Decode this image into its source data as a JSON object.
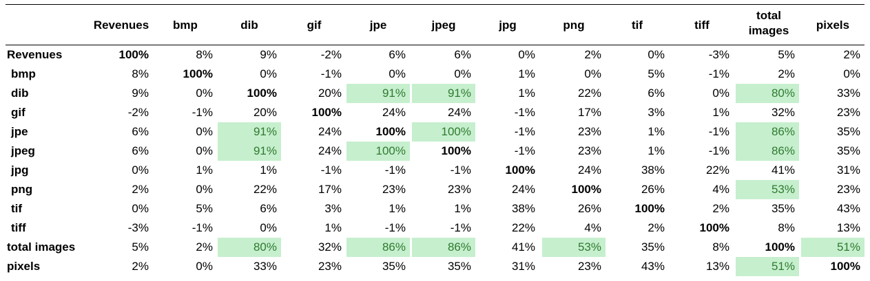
{
  "chart_data": {
    "type": "table",
    "columns": [
      "Revenues",
      "bmp",
      "dib",
      "gif",
      "jpe",
      "jpeg",
      "jpg",
      "png",
      "tif",
      "tiff",
      "total images",
      "pixels"
    ],
    "rows": [
      {
        "label": "Revenues",
        "values": [
          "100%",
          "8%",
          "9%",
          "-2%",
          "6%",
          "6%",
          "0%",
          "2%",
          "0%",
          "-3%",
          "5%",
          "2%"
        ]
      },
      {
        "label": "bmp",
        "values": [
          "8%",
          "100%",
          "0%",
          "-1%",
          "0%",
          "0%",
          "1%",
          "0%",
          "5%",
          "-1%",
          "2%",
          "0%"
        ]
      },
      {
        "label": "dib",
        "values": [
          "9%",
          "0%",
          "100%",
          "20%",
          "91%",
          "91%",
          "1%",
          "22%",
          "6%",
          "0%",
          "80%",
          "33%"
        ]
      },
      {
        "label": "gif",
        "values": [
          "-2%",
          "-1%",
          "20%",
          "100%",
          "24%",
          "24%",
          "-1%",
          "17%",
          "3%",
          "1%",
          "32%",
          "23%"
        ]
      },
      {
        "label": "jpe",
        "values": [
          "6%",
          "0%",
          "91%",
          "24%",
          "100%",
          "100%",
          "-1%",
          "23%",
          "1%",
          "-1%",
          "86%",
          "35%"
        ]
      },
      {
        "label": "jpeg",
        "values": [
          "6%",
          "0%",
          "91%",
          "24%",
          "100%",
          "100%",
          "-1%",
          "23%",
          "1%",
          "-1%",
          "86%",
          "35%"
        ]
      },
      {
        "label": "jpg",
        "values": [
          "0%",
          "1%",
          "1%",
          "-1%",
          "-1%",
          "-1%",
          "100%",
          "24%",
          "38%",
          "22%",
          "41%",
          "31%"
        ]
      },
      {
        "label": "png",
        "values": [
          "2%",
          "0%",
          "22%",
          "17%",
          "23%",
          "23%",
          "24%",
          "100%",
          "26%",
          "4%",
          "53%",
          "23%"
        ]
      },
      {
        "label": "tif",
        "values": [
          "0%",
          "5%",
          "6%",
          "3%",
          "1%",
          "1%",
          "38%",
          "26%",
          "100%",
          "2%",
          "35%",
          "43%"
        ]
      },
      {
        "label": "tiff",
        "values": [
          "-3%",
          "-1%",
          "0%",
          "1%",
          "-1%",
          "-1%",
          "22%",
          "4%",
          "2%",
          "100%",
          "8%",
          "13%"
        ]
      },
      {
        "label": "total images",
        "values": [
          "5%",
          "2%",
          "80%",
          "32%",
          "86%",
          "86%",
          "41%",
          "53%",
          "35%",
          "8%",
          "100%",
          "51%"
        ]
      },
      {
        "label": "pixels",
        "values": [
          "2%",
          "0%",
          "33%",
          "23%",
          "35%",
          "35%",
          "31%",
          "23%",
          "43%",
          "13%",
          "51%",
          "100%"
        ]
      }
    ],
    "highlighted_cells": [
      [
        2,
        4
      ],
      [
        2,
        5
      ],
      [
        2,
        10
      ],
      [
        4,
        2
      ],
      [
        4,
        5
      ],
      [
        4,
        10
      ],
      [
        5,
        2
      ],
      [
        5,
        4
      ],
      [
        5,
        10
      ],
      [
        7,
        10
      ],
      [
        10,
        2
      ],
      [
        10,
        4
      ],
      [
        10,
        5
      ],
      [
        10,
        7
      ],
      [
        10,
        11
      ],
      [
        11,
        10
      ]
    ],
    "highlight_fill": "#c6efce",
    "highlight_text": "#2f7a2f",
    "diagonal_bold": true
  }
}
